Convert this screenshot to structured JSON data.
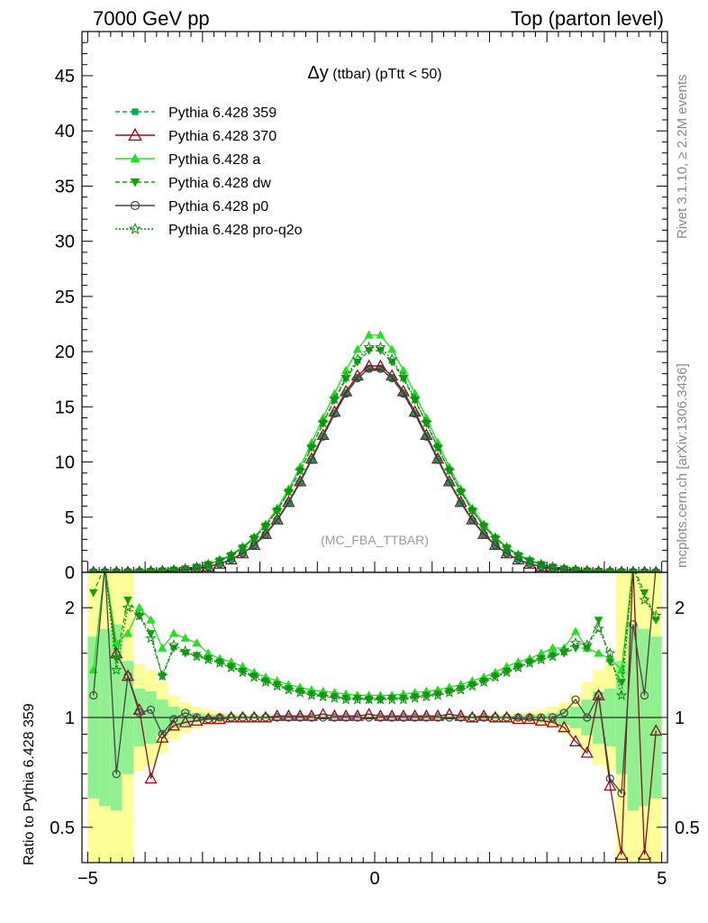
{
  "header": {
    "left": "7000 GeV pp",
    "right": "Top (parton level)"
  },
  "plot_title_symbol": "Δy",
  "plot_title_rest": " (ttbar) (pTtt < 50)",
  "watermark": "(MC_FBA_TTBAR)",
  "side_text_top": "Rivet 3.1.10, ≥ 2.2M events",
  "side_text_bottom": "mcplots.cern.ch [arXiv:1306.3436]",
  "colors": {
    "359": "#00b050",
    "370": "#8b0e1e",
    "a": "#22e022",
    "dw": "#11a011",
    "p0": "#444444",
    "pro-q2o": "#0e8c0e",
    "band_inner": "#90f090",
    "band_outer": "#ffff99"
  },
  "chart_data": [
    {
      "type": "line",
      "panel": "main",
      "x_range": [
        -5.1,
        5.1
      ],
      "ylim": [
        0,
        49
      ],
      "y_ticks": [
        0,
        5,
        10,
        15,
        20,
        25,
        30,
        35,
        40,
        45
      ],
      "x": [
        -4.9,
        -4.7,
        -4.5,
        -4.3,
        -4.1,
        -3.9,
        -3.7,
        -3.5,
        -3.3,
        -3.1,
        -2.9,
        -2.7,
        -2.5,
        -2.3,
        -2.1,
        -1.9,
        -1.7,
        -1.5,
        -1.3,
        -1.1,
        -0.9,
        -0.7,
        -0.5,
        -0.3,
        -0.1,
        0.1,
        0.3,
        0.5,
        0.7,
        0.9,
        1.1,
        1.3,
        1.5,
        1.7,
        1.9,
        2.1,
        2.3,
        2.5,
        2.7,
        2.9,
        3.1,
        3.3,
        3.5,
        3.7,
        3.9,
        4.1,
        4.3,
        4.5,
        4.7,
        4.9
      ],
      "series": [
        {
          "name": "Pythia 6.428 359",
          "key": "359",
          "marker": "square",
          "dash": "5,3",
          "values": [
            0.01,
            0.01,
            0.02,
            0.03,
            0.04,
            0.06,
            0.09,
            0.14,
            0.22,
            0.34,
            0.52,
            0.78,
            1.16,
            1.7,
            2.44,
            3.42,
            4.7,
            6.28,
            8.12,
            10.15,
            12.27,
            14.33,
            16.15,
            17.56,
            18.41,
            18.41,
            17.56,
            16.15,
            14.33,
            12.27,
            10.15,
            8.12,
            6.28,
            4.7,
            3.42,
            2.44,
            1.7,
            1.16,
            0.78,
            0.52,
            0.34,
            0.22,
            0.14,
            0.09,
            0.06,
            0.04,
            0.03,
            0.02,
            0.01,
            0.01
          ]
        },
        {
          "name": "Pythia 6.428 370",
          "key": "370",
          "marker": "triangle-open",
          "dash": "",
          "values": [
            0.01,
            0.01,
            0.02,
            0.03,
            0.04,
            0.06,
            0.09,
            0.14,
            0.22,
            0.34,
            0.52,
            0.78,
            1.16,
            1.72,
            2.48,
            3.48,
            4.78,
            6.38,
            8.24,
            10.3,
            12.45,
            14.55,
            16.4,
            17.83,
            18.7,
            18.7,
            17.83,
            16.4,
            14.55,
            12.45,
            10.3,
            8.24,
            6.38,
            4.78,
            3.48,
            2.48,
            1.72,
            1.16,
            0.78,
            0.52,
            0.34,
            0.22,
            0.14,
            0.09,
            0.06,
            0.04,
            0.03,
            0.02,
            0.01,
            0.01
          ]
        },
        {
          "name": "Pythia 6.428 a",
          "key": "a",
          "marker": "triangle",
          "dash": "",
          "values": [
            0.01,
            0.02,
            0.03,
            0.05,
            0.07,
            0.1,
            0.15,
            0.23,
            0.34,
            0.5,
            0.75,
            1.1,
            1.6,
            2.3,
            3.2,
            4.35,
            5.8,
            7.55,
            9.55,
            11.75,
            14.0,
            16.2,
            18.3,
            20.2,
            21.5,
            21.5,
            20.2,
            18.3,
            16.2,
            14.0,
            11.75,
            9.55,
            7.55,
            5.8,
            4.35,
            3.2,
            2.3,
            1.6,
            1.1,
            0.75,
            0.5,
            0.34,
            0.23,
            0.15,
            0.1,
            0.07,
            0.05,
            0.03,
            0.02,
            0.01
          ]
        },
        {
          "name": "Pythia 6.428 dw",
          "key": "dw",
          "marker": "triangle-down",
          "dash": "5,3",
          "values": [
            0.01,
            0.02,
            0.03,
            0.05,
            0.07,
            0.1,
            0.14,
            0.22,
            0.33,
            0.49,
            0.73,
            1.07,
            1.55,
            2.22,
            3.1,
            4.2,
            5.6,
            7.3,
            9.22,
            11.3,
            13.5,
            15.6,
            17.55,
            19.05,
            20.1,
            20.1,
            19.05,
            17.55,
            15.6,
            13.5,
            11.3,
            9.22,
            7.3,
            5.6,
            4.2,
            3.1,
            2.22,
            1.55,
            1.07,
            0.73,
            0.49,
            0.33,
            0.22,
            0.14,
            0.1,
            0.07,
            0.05,
            0.03,
            0.02,
            0.01
          ]
        },
        {
          "name": "Pythia 6.428 p0",
          "key": "p0",
          "marker": "circle-open",
          "dash": "",
          "values": [
            0.01,
            0.01,
            0.02,
            0.03,
            0.04,
            0.06,
            0.09,
            0.14,
            0.22,
            0.34,
            0.52,
            0.78,
            1.16,
            1.72,
            2.46,
            3.44,
            4.72,
            6.3,
            8.15,
            10.2,
            12.3,
            14.38,
            16.2,
            17.6,
            18.45,
            18.45,
            17.6,
            16.2,
            14.38,
            12.3,
            10.2,
            8.15,
            6.3,
            4.72,
            3.44,
            2.46,
            1.72,
            1.16,
            0.78,
            0.52,
            0.34,
            0.22,
            0.14,
            0.09,
            0.06,
            0.04,
            0.03,
            0.02,
            0.01,
            0.01
          ]
        },
        {
          "name": "Pythia 6.428 pro-q2o",
          "key": "pro-q2o",
          "marker": "star-open",
          "dash": "2,2",
          "values": [
            0.01,
            0.02,
            0.03,
            0.05,
            0.07,
            0.1,
            0.14,
            0.22,
            0.33,
            0.49,
            0.73,
            1.07,
            1.55,
            2.22,
            3.1,
            4.2,
            5.6,
            7.3,
            9.22,
            11.3,
            13.55,
            15.7,
            17.7,
            19.3,
            20.4,
            20.4,
            19.3,
            17.7,
            15.7,
            13.55,
            11.3,
            9.22,
            7.3,
            5.6,
            4.2,
            3.1,
            2.22,
            1.55,
            1.07,
            0.73,
            0.49,
            0.33,
            0.22,
            0.14,
            0.1,
            0.07,
            0.05,
            0.03,
            0.02,
            0.01
          ]
        }
      ]
    },
    {
      "type": "line",
      "panel": "ratio",
      "ylabel": "Ratio to Pythia 6.428 359",
      "x_range": [
        -5.1,
        5.1
      ],
      "ylim": [
        0.4,
        2.5
      ],
      "log_y": true,
      "y_ticks": [
        0.5,
        1,
        2
      ],
      "x_ticks": [
        -5,
        0,
        5
      ],
      "x": [
        -4.9,
        -4.7,
        -4.5,
        -4.3,
        -4.1,
        -3.9,
        -3.7,
        -3.5,
        -3.3,
        -3.1,
        -2.9,
        -2.7,
        -2.5,
        -2.3,
        -2.1,
        -1.9,
        -1.7,
        -1.5,
        -1.3,
        -1.1,
        -0.9,
        -0.7,
        -0.5,
        -0.3,
        -0.1,
        0.1,
        0.3,
        0.5,
        0.7,
        0.9,
        1.1,
        1.3,
        1.5,
        1.7,
        1.9,
        2.1,
        2.3,
        2.5,
        2.7,
        2.9,
        3.1,
        3.3,
        3.5,
        3.7,
        3.9,
        4.1,
        4.3,
        4.5,
        4.7,
        4.9
      ],
      "band_inner": [
        0.6,
        1.75,
        1.8,
        0.7,
        1.2,
        1.18,
        1.12,
        1.07,
        1.05,
        1.03,
        1.02,
        1.02,
        1.015,
        1.012,
        1.01,
        1.01,
        1.008,
        1.007,
        1.006,
        1.006,
        1.005,
        1.005,
        1.005,
        1.005,
        1.005,
        1.005,
        1.005,
        1.005,
        1.005,
        1.005,
        1.006,
        1.006,
        1.007,
        1.008,
        1.01,
        1.01,
        1.012,
        1.015,
        1.02,
        1.02,
        1.03,
        1.05,
        1.07,
        1.12,
        1.18,
        1.2,
        0.7,
        1.8,
        1.75,
        0.6
      ],
      "band_outer": [
        0.4,
        2.5,
        2.5,
        0.4,
        1.4,
        1.35,
        1.25,
        1.15,
        1.1,
        1.07,
        1.05,
        1.04,
        1.03,
        1.025,
        1.02,
        1.02,
        1.016,
        1.014,
        1.012,
        1.012,
        1.01,
        1.01,
        1.01,
        1.01,
        1.01,
        1.01,
        1.01,
        1.01,
        1.01,
        1.01,
        1.012,
        1.012,
        1.014,
        1.016,
        1.02,
        1.02,
        1.025,
        1.03,
        1.04,
        1.05,
        1.07,
        1.1,
        1.15,
        1.25,
        1.35,
        1.4,
        0.4,
        2.5,
        2.5,
        0.4
      ],
      "series": [
        {
          "name": "Pythia 6.428 370",
          "key": "370",
          "values": [
            2.6,
            2.6,
            1.5,
            1.3,
            1.05,
            0.68,
            0.88,
            0.95,
            0.97,
            0.98,
            0.99,
            0.99,
            1.0,
            1.0,
            1.0,
            1.0,
            1.01,
            1.01,
            1.01,
            1.01,
            1.02,
            1.01,
            1.01,
            1.01,
            1.02,
            1.01,
            1.01,
            1.01,
            1.01,
            1.01,
            1.01,
            1.02,
            1.01,
            1.0,
            1.01,
            1.0,
            1.0,
            0.99,
            0.99,
            0.98,
            0.97,
            0.94,
            0.86,
            0.8,
            1.15,
            0.65,
            0.42,
            2.6,
            0.42,
            0.92
          ]
        },
        {
          "name": "Pythia 6.428 a",
          "key": "a",
          "values": [
            1.35,
            2.6,
            1.6,
            1.7,
            2.0,
            1.85,
            1.55,
            1.7,
            1.65,
            1.6,
            1.5,
            1.45,
            1.42,
            1.38,
            1.33,
            1.29,
            1.26,
            1.23,
            1.21,
            1.19,
            1.18,
            1.17,
            1.16,
            1.15,
            1.15,
            1.15,
            1.15,
            1.16,
            1.17,
            1.18,
            1.19,
            1.21,
            1.23,
            1.26,
            1.29,
            1.33,
            1.38,
            1.42,
            1.45,
            1.5,
            1.55,
            1.55,
            1.72,
            1.55,
            1.5,
            1.45,
            1.35,
            2.6,
            2.6,
            2.6
          ]
        },
        {
          "name": "Pythia 6.428 dw",
          "key": "dw",
          "values": [
            2.2,
            2.6,
            1.45,
            2.1,
            1.9,
            1.7,
            1.3,
            1.55,
            1.5,
            1.48,
            1.45,
            1.42,
            1.38,
            1.34,
            1.3,
            1.26,
            1.23,
            1.2,
            1.18,
            1.16,
            1.15,
            1.14,
            1.13,
            1.13,
            1.12,
            1.12,
            1.13,
            1.13,
            1.14,
            1.15,
            1.16,
            1.18,
            1.2,
            1.23,
            1.26,
            1.3,
            1.34,
            1.38,
            1.42,
            1.45,
            1.48,
            1.5,
            1.55,
            1.55,
            1.85,
            1.42,
            1.25,
            2.6,
            2.2,
            1.85
          ]
        },
        {
          "name": "Pythia 6.428 p0",
          "key": "p0",
          "values": [
            1.15,
            2.6,
            0.7,
            1.3,
            1.03,
            1.05,
            0.9,
            0.99,
            1.03,
            1.0,
            0.99,
            1.0,
            1.0,
            1.0,
            1.0,
            1.0,
            1.0,
            1.0,
            1.0,
            1.0,
            1.0,
            1.0,
            1.0,
            1.0,
            1.0,
            1.0,
            1.0,
            1.0,
            1.0,
            1.0,
            1.0,
            1.0,
            1.0,
            1.0,
            1.0,
            1.0,
            1.0,
            1.0,
            1.0,
            1.0,
            1.0,
            1.03,
            1.12,
            1.0,
            1.15,
            0.68,
            0.62,
            1.8,
            1.15,
            2.6
          ]
        },
        {
          "name": "Pythia 6.428 pro-q2o",
          "key": "pro-q2o",
          "values": [
            2.6,
            2.6,
            1.35,
            2.0,
            1.9,
            1.65,
            1.3,
            1.58,
            1.52,
            1.47,
            1.44,
            1.41,
            1.37,
            1.33,
            1.29,
            1.25,
            1.22,
            1.19,
            1.17,
            1.15,
            1.14,
            1.13,
            1.12,
            1.12,
            1.12,
            1.12,
            1.12,
            1.12,
            1.13,
            1.14,
            1.15,
            1.17,
            1.19,
            1.22,
            1.25,
            1.29,
            1.33,
            1.37,
            1.41,
            1.44,
            1.47,
            1.52,
            1.6,
            1.58,
            1.75,
            1.5,
            1.15,
            2.6,
            2.1,
            1.9
          ]
        }
      ]
    }
  ]
}
